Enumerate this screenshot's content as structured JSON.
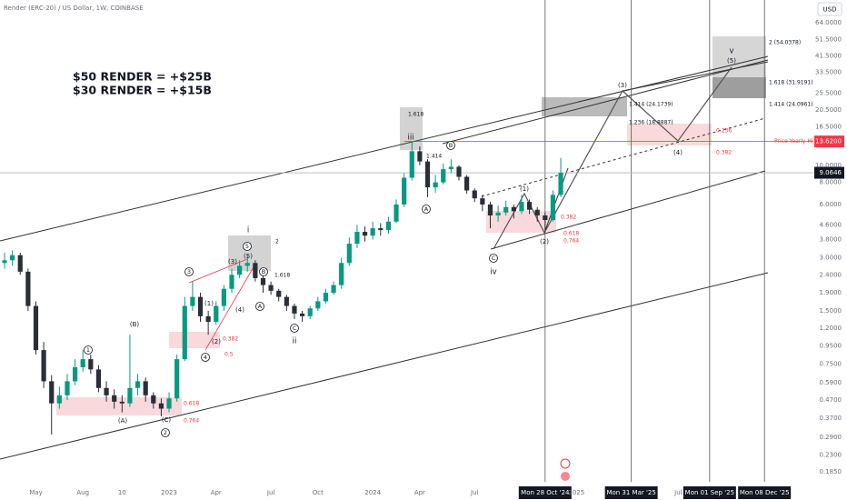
{
  "chart_data": {
    "type": "candlestick",
    "title": "Render (ERC-20) / US Dollar, 1W, COINBASE",
    "currency": "USD",
    "log_scale": true,
    "grid": false,
    "colors": {
      "up": "#089981",
      "down": "#2a2e39"
    },
    "categories": [
      null,
      null,
      null,
      null,
      "May",
      null,
      null,
      null,
      null,
      null,
      "Aug",
      null,
      null,
      null,
      null,
      "10",
      null,
      null,
      null,
      null,
      null,
      "2023",
      null,
      null,
      null,
      null,
      null,
      "Apr",
      null,
      null,
      null,
      null,
      null,
      null,
      "Jul",
      null,
      null,
      null,
      null,
      null,
      "Oct",
      null,
      null,
      null,
      null,
      null,
      null,
      "2024",
      null,
      null,
      null,
      null,
      null,
      "Apr",
      null,
      null,
      null,
      null,
      null,
      null,
      "Jul",
      null,
      null,
      null,
      null,
      null,
      null,
      null,
      null,
      "Mon 28 Oct '24",
      null,
      null,
      null,
      "2025",
      null,
      null,
      null,
      null,
      null,
      null,
      "Mon 31 Mar '25",
      null,
      null,
      null,
      null,
      null,
      "Jul",
      null,
      null,
      null,
      "Mon 01 Sep '25",
      null,
      null,
      null,
      null,
      null,
      null,
      "Mon 08 Dec '25",
      null,
      null,
      null,
      null,
      null
    ],
    "open": [
      2.8,
      2.9,
      3.1,
      2.5,
      1.6,
      0.9,
      0.6,
      0.45,
      0.5,
      0.6,
      0.72,
      0.8,
      0.7,
      0.55,
      0.5,
      0.46,
      0.45,
      0.55,
      0.6,
      0.5,
      0.45,
      0.42,
      0.48,
      0.8,
      1.6,
      1.8,
      1.4,
      1.3,
      1.6,
      2.0,
      2.4,
      2.7,
      2.8,
      2.3,
      2.1,
      1.95,
      1.8,
      1.6,
      1.45,
      1.4,
      1.55,
      1.7,
      1.9,
      2.1,
      2.8,
      3.6,
      4.2,
      4.0,
      4.4,
      4.3,
      4.8,
      6.0,
      8.5,
      12.0,
      10.5,
      7.5,
      8.0,
      9.5,
      9.8,
      8.6,
      7.2,
      6.5,
      6.0,
      5.2,
      5.4,
      5.8,
      5.5,
      6.2,
      5.6,
      5.2,
      4.9,
      6.8,
      null,
      null,
      null,
      null,
      null,
      null,
      null,
      null,
      null,
      null,
      null,
      null,
      null,
      null,
      null,
      null,
      null,
      null,
      null,
      null,
      null,
      null,
      null,
      null,
      null,
      null,
      null,
      null,
      null,
      null,
      null
    ],
    "high": [
      3.2,
      3.3,
      3.2,
      2.6,
      1.7,
      1.0,
      0.65,
      0.56,
      0.66,
      0.8,
      0.9,
      0.85,
      0.74,
      0.6,
      0.54,
      0.5,
      1.1,
      0.66,
      0.63,
      0.52,
      0.48,
      0.52,
      0.85,
      1.8,
      2.2,
      1.9,
      1.5,
      1.7,
      2.1,
      2.6,
      2.9,
      3.1,
      2.9,
      2.4,
      2.2,
      2.0,
      1.85,
      1.65,
      1.5,
      1.6,
      1.8,
      2.0,
      2.2,
      3.0,
      3.9,
      4.6,
      4.5,
      4.8,
      4.7,
      5.1,
      6.4,
      9.0,
      13.5,
      12.8,
      10.8,
      8.8,
      10.2,
      10.8,
      10.0,
      8.8,
      7.4,
      6.8,
      6.2,
      5.9,
      6.3,
      6.0,
      6.8,
      6.4,
      5.8,
      5.4,
      7.2,
      11.0,
      null,
      null,
      null,
      null,
      null,
      null,
      null,
      null,
      null,
      null,
      null,
      null,
      null,
      null,
      null,
      null,
      null,
      null,
      null,
      null,
      null,
      null,
      null,
      null,
      null,
      null,
      null,
      null,
      null,
      null,
      null
    ],
    "low": [
      2.6,
      2.7,
      2.4,
      1.5,
      0.85,
      0.55,
      0.3,
      0.42,
      0.47,
      0.57,
      0.68,
      0.66,
      0.52,
      0.46,
      0.42,
      0.4,
      0.43,
      0.5,
      0.46,
      0.42,
      0.38,
      0.4,
      0.46,
      0.78,
      1.5,
      1.3,
      1.1,
      1.25,
      1.5,
      1.9,
      2.3,
      2.5,
      2.2,
      1.9,
      1.85,
      1.7,
      1.5,
      1.35,
      1.3,
      1.35,
      1.5,
      1.65,
      1.85,
      2.0,
      2.7,
      3.4,
      3.7,
      3.8,
      4.0,
      4.1,
      4.7,
      5.8,
      8.2,
      10.0,
      6.6,
      7.0,
      7.8,
      9.0,
      8.2,
      6.9,
      6.2,
      5.5,
      4.4,
      4.8,
      5.2,
      5.0,
      5.3,
      5.3,
      4.8,
      4.3,
      4.8,
      6.6,
      null,
      null,
      null,
      null,
      null,
      null,
      null,
      null,
      null,
      null,
      null,
      null,
      null,
      null,
      null,
      null,
      null,
      null,
      null,
      null,
      null,
      null,
      null,
      null,
      null,
      null,
      null,
      null,
      null,
      null,
      null
    ],
    "close": [
      2.9,
      3.1,
      2.5,
      1.6,
      0.9,
      0.6,
      0.45,
      0.5,
      0.6,
      0.72,
      0.8,
      0.7,
      0.55,
      0.5,
      0.46,
      0.45,
      0.55,
      0.6,
      0.5,
      0.45,
      0.42,
      0.48,
      0.8,
      1.6,
      1.8,
      1.4,
      1.3,
      1.6,
      2.0,
      2.4,
      2.7,
      2.8,
      2.3,
      2.1,
      1.95,
      1.8,
      1.6,
      1.45,
      1.4,
      1.55,
      1.7,
      1.9,
      2.1,
      2.8,
      3.6,
      4.2,
      4.0,
      4.4,
      4.3,
      4.8,
      6.0,
      8.5,
      12.0,
      10.5,
      7.5,
      8.0,
      9.5,
      9.8,
      8.6,
      7.2,
      6.5,
      6.0,
      5.2,
      5.4,
      5.8,
      5.5,
      6.2,
      5.6,
      5.2,
      4.9,
      6.8,
      9.06,
      null,
      null,
      null,
      null,
      null,
      null,
      null,
      null,
      null,
      null,
      null,
      null,
      null,
      null,
      null,
      null,
      null,
      null,
      null,
      null,
      null,
      null,
      null,
      null,
      null,
      null,
      null,
      null,
      null,
      null,
      null
    ],
    "ylim": [
      0.162,
      86
    ],
    "yticks": [
      {
        "value": 64,
        "label": "64.0000"
      },
      {
        "value": 51.5,
        "label": "51.5000"
      },
      {
        "value": 41.5,
        "label": "41.5000"
      },
      {
        "value": 33.5,
        "label": "33.5000"
      },
      {
        "value": 25.5,
        "label": "25.5000"
      },
      {
        "value": 20.5,
        "label": "20.5000"
      },
      {
        "value": 16.5,
        "label": "16.5000"
      },
      {
        "value": 10,
        "label": "10.0000"
      },
      {
        "value": 8,
        "label": "8.0000"
      },
      {
        "value": 6,
        "label": "6.0000"
      },
      {
        "value": 4.6,
        "label": "4.6000"
      },
      {
        "value": 3.8,
        "label": "3.8000"
      },
      {
        "value": 3,
        "label": "3.0000"
      },
      {
        "value": 2.4,
        "label": "2.4000"
      },
      {
        "value": 1.9,
        "label": "1.9000"
      },
      {
        "value": 1.5,
        "label": "1.5000"
      },
      {
        "value": 1.2,
        "label": "1.2000"
      },
      {
        "value": 0.95,
        "label": "0.9500"
      },
      {
        "value": 0.75,
        "label": "0.7500"
      },
      {
        "value": 0.59,
        "label": "0.5900"
      },
      {
        "value": 0.47,
        "label": "0.4700"
      },
      {
        "value": 0.37,
        "label": "0.3700"
      },
      {
        "value": 0.29,
        "label": "0.2900"
      },
      {
        "value": 0.23,
        "label": "0.2300"
      },
      {
        "value": 0.185,
        "label": "0.1850"
      }
    ],
    "last_price": 9.0646,
    "yearly_high": {
      "value": 13.62,
      "label": "13.6200",
      "name": "Price Yearly High",
      "color": "#f23645"
    },
    "annotations": [
      "$50 RENDER = +$25B",
      "$30 RENDER = +$15B",
      "i",
      "ii",
      "iii",
      "iv",
      "v",
      "(1)",
      "(2)",
      "(3)",
      "(4)",
      "(5)",
      "(1)",
      "(2)",
      "(3)",
      "(4)",
      "(5)",
      "(A)",
      "(B)",
      "(C)",
      "1",
      "2",
      "3",
      "4",
      "5",
      "A",
      "B",
      "C",
      "A",
      "B",
      "C",
      "2",
      "1.618",
      "1.618",
      "1.414",
      "0.382",
      "0.5",
      "0.618",
      "0.764",
      "0.382",
      "0.618",
      "0.764",
      "2 (54.0378)",
      "1.618 (31.9191)",
      "1.414 (24.0961)",
      "1.414 (24.1739)",
      "1.236 (18.8887)",
      "0.236",
      "0.382"
    ]
  }
}
